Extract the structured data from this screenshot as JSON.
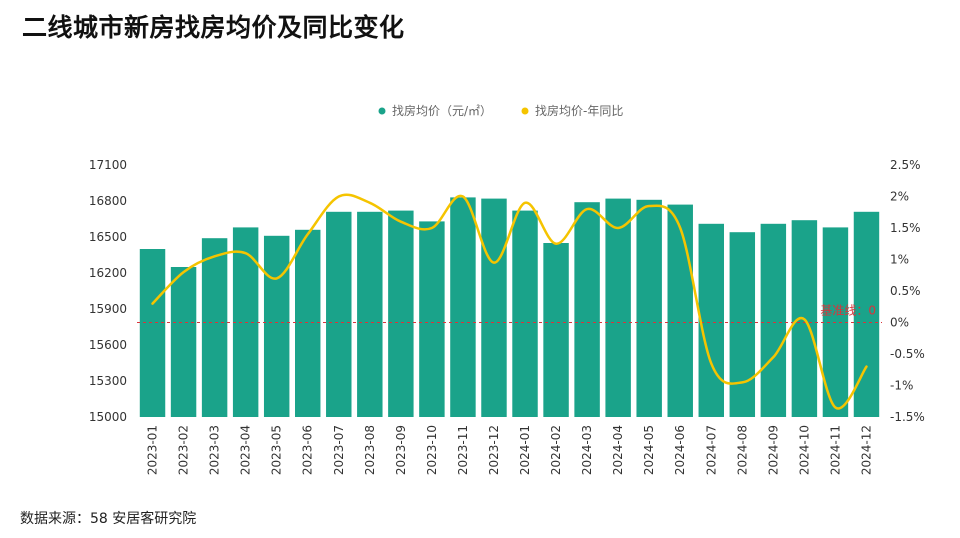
{
  "title": "二线城市新房找房均价及同比变化",
  "source": "数据来源：58 安居客研究院",
  "chart_data": {
    "type": "bar",
    "title": "二线城市新房找房均价及同比变化",
    "categories": [
      "2023-01",
      "2023-02",
      "2023-03",
      "2023-04",
      "2023-05",
      "2023-06",
      "2023-07",
      "2023-08",
      "2023-09",
      "2023-10",
      "2023-11",
      "2023-12",
      "2024-01",
      "2024-02",
      "2024-03",
      "2024-04",
      "2024-05",
      "2024-06",
      "2024-07",
      "2024-08",
      "2024-09",
      "2024-10",
      "2024-11",
      "2024-12"
    ],
    "series": [
      {
        "name": "找房均价（元/㎡）",
        "type": "bar",
        "axis": "left",
        "color": "#1aa38a",
        "values": [
          16400,
          16250,
          16490,
          16580,
          16510,
          16560,
          16710,
          16710,
          16720,
          16630,
          16830,
          16820,
          16720,
          16450,
          16790,
          16820,
          16810,
          16770,
          16610,
          16540,
          16610,
          16640,
          16580,
          16710
        ]
      },
      {
        "name": "找房均价-年同比",
        "type": "line",
        "axis": "right",
        "color": "#f5c400",
        "unit": "%",
        "values": [
          0.3,
          0.8,
          1.05,
          1.1,
          0.7,
          1.4,
          2.0,
          1.9,
          1.6,
          1.5,
          2.0,
          0.95,
          1.9,
          1.25,
          1.8,
          1.5,
          1.85,
          1.5,
          -0.65,
          -0.95,
          -0.55,
          0.05,
          -1.35,
          -0.7
        ]
      }
    ],
    "y_left": {
      "min": 15000,
      "max": 17100,
      "ticks": [
        15000,
        15300,
        15600,
        15900,
        16200,
        16500,
        16800,
        17100
      ]
    },
    "y_right": {
      "min": -1.5,
      "max": 2.5,
      "ticks": [
        -1.5,
        -1,
        -0.5,
        0,
        0.5,
        1,
        1.5,
        2,
        2.5
      ],
      "tick_labels": [
        "-1.5%",
        "-1%",
        "-0.5%",
        "0%",
        "0.5%",
        "1%",
        "1.5%",
        "2%",
        "2.5%"
      ]
    },
    "reference_line": {
      "axis": "right",
      "value": 0,
      "label": "基准线：0",
      "color": "#d9343b"
    },
    "legend_position": "top-center",
    "grid": false
  }
}
